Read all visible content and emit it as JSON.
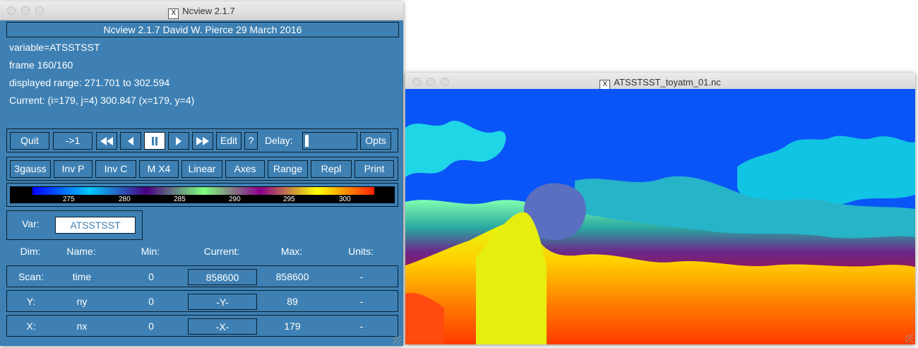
{
  "main_window": {
    "title": "Ncview 2.1.7",
    "header": "Ncview 2.1.7 David W. Pierce  29 March 2016",
    "variable_line": "variable=ATSSTSST",
    "frame_line": "frame 160/160",
    "range_line": "displayed range: 271.701 to 302.594",
    "current_line": "Current: (i=179, j=4) 300.847 (x=179, y=4)",
    "buttons_row1": {
      "quit": "Quit",
      "to_first": "->1",
      "rewind": "◀◀",
      "back": "◀",
      "pause": "||",
      "forward": "▶",
      "fast_forward": "▶▶",
      "edit": "Edit",
      "help": "?",
      "delay_label": "Delay:",
      "opts": "Opts"
    },
    "buttons_row2": [
      "3gauss",
      "Inv P",
      "Inv C",
      "M X4",
      "Linear",
      "Axes",
      "Range",
      "Repl",
      "Print"
    ],
    "colorbar": {
      "ticks": [
        "275",
        "280",
        "285",
        "290",
        "295",
        "300"
      ],
      "colors": [
        "#0000ff",
        "#00c8ff",
        "#4b0082",
        "#7fff7f",
        "#8b008b",
        "#ffff00",
        "#ff2000"
      ]
    },
    "var_label": "Var:",
    "var_value": "ATSSTSST",
    "dim_headers": {
      "dim": "Dim:",
      "name": "Name:",
      "min": "Min:",
      "current": "Current:",
      "max": "Max:",
      "units": "Units:"
    },
    "dims": [
      {
        "dim": "Scan:",
        "name": "time",
        "min": "0",
        "current": "858600",
        "max": "858600",
        "units": "-"
      },
      {
        "dim": "Y:",
        "name": "ny",
        "min": "0",
        "current": "-Y-",
        "max": "89",
        "units": "-"
      },
      {
        "dim": "X:",
        "name": "nx",
        "min": "0",
        "current": "-X-",
        "max": "179",
        "units": "-"
      }
    ],
    "accent_color": "#3e80b3"
  },
  "plot_window": {
    "title": "ATSSTSST_toyatm_01.nc",
    "background_color": "#0a55f7"
  }
}
